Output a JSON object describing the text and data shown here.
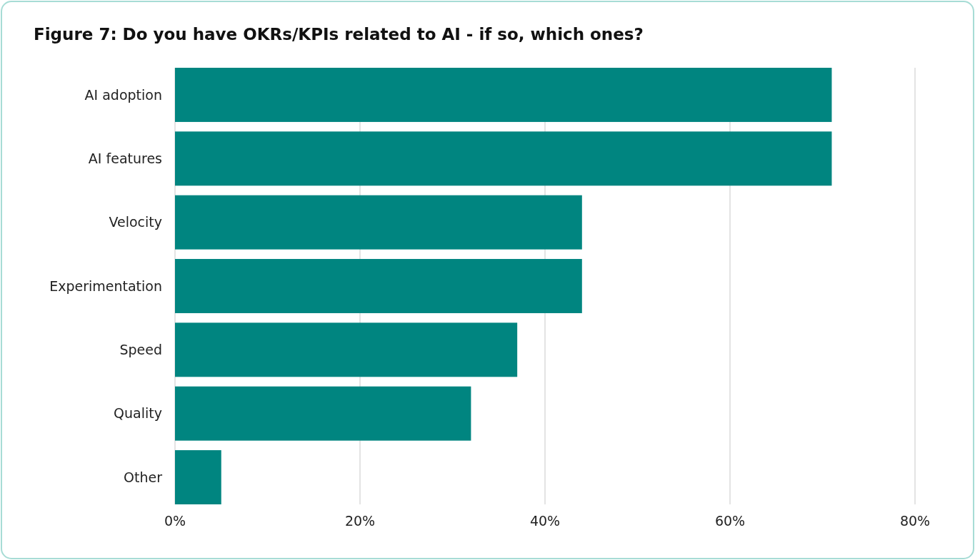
{
  "chart_data": {
    "type": "bar",
    "orientation": "horizontal",
    "title": "Figure 7: Do you have OKRs/KPIs related to AI - if so, which ones?",
    "categories": [
      "AI adoption",
      "AI features",
      "Velocity",
      "Experimentation",
      "Speed",
      "Quality",
      "Other"
    ],
    "values": [
      71,
      71,
      44,
      44,
      37,
      32,
      5
    ],
    "color": "#008580",
    "xlim": [
      0,
      80
    ],
    "xticks": [
      {
        "value": 0,
        "label": "0%"
      },
      {
        "value": 20,
        "label": "20%"
      },
      {
        "value": 40,
        "label": "40%"
      },
      {
        "value": 60,
        "label": "60%"
      },
      {
        "value": 80,
        "label": "80%"
      }
    ],
    "grid": "x"
  }
}
